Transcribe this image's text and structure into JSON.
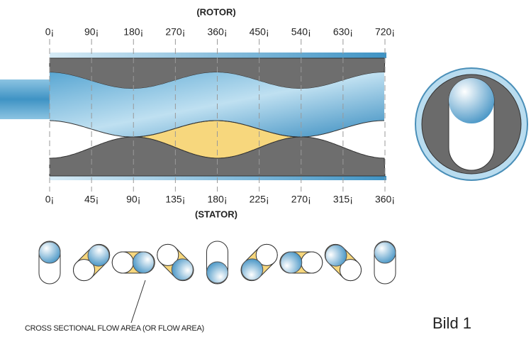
{
  "rotor_label": "(ROTOR)",
  "rotor_ticks": [
    "0¡",
    "90¡",
    "180¡",
    "270¡",
    "360¡",
    "450¡",
    "540¡",
    "630¡",
    "720¡"
  ],
  "stator_ticks": [
    "0¡",
    "45¡",
    "90¡",
    "135¡",
    "180¡",
    "225¡",
    "270¡",
    "315¡",
    "360¡"
  ],
  "stator_label": "(STATOR)",
  "caption": "CROSS SECTIONAL FLOW AREA (OR FLOW AREA)",
  "figure_label": "Bild 1"
}
